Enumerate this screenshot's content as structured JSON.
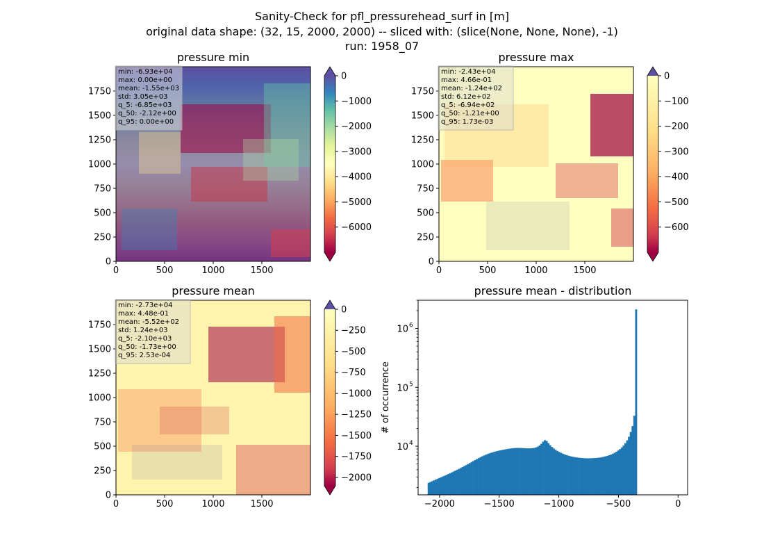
{
  "figure": {
    "title_lines": [
      "Sanity-Check for pfl_pressurehead_surf in [m]",
      "original data shape: (32, 15, 2000, 2000) -- sliced with: (slice(None, None, None), -1)",
      "run: 1958_07"
    ]
  },
  "chart_data": [
    {
      "type": "heatmap",
      "title": "pressure min",
      "xlim": [
        0,
        2000
      ],
      "ylim": [
        0,
        2000
      ],
      "x_ticks": [
        0,
        500,
        1000,
        1500
      ],
      "y_ticks": [
        0,
        250,
        500,
        750,
        1000,
        1250,
        1500,
        1750
      ],
      "colormap": "Spectral",
      "colorbar": {
        "min": -7000,
        "max": 0,
        "ticks": [
          0,
          -1000,
          -2000,
          -3000,
          -4000,
          -5000,
          -6000
        ],
        "extend": "both"
      },
      "stats_lines": [
        "min: -6.93e+04",
        "max: 0.00e+00",
        "mean: -1.55e+03",
        "std: 3.05e+03",
        "q_5: -6.85e+03",
        "q_50: -2.12e+00",
        "q_95: 0.00e+00"
      ]
    },
    {
      "type": "heatmap",
      "title": "pressure max",
      "xlim": [
        0,
        2000
      ],
      "ylim": [
        0,
        2000
      ],
      "x_ticks": [
        0,
        500,
        1000,
        1500
      ],
      "y_ticks": [
        0,
        250,
        500,
        750,
        1000,
        1250,
        1500,
        1750
      ],
      "colormap": "Spectral",
      "colorbar": {
        "min": -700,
        "max": 0,
        "ticks": [
          0,
          -100,
          -200,
          -300,
          -400,
          -500,
          -600
        ],
        "extend": "both"
      },
      "stats_lines": [
        "min: -2.43e+04",
        "max: 4.66e-01",
        "mean: -1.24e+02",
        "std: 6.12e+02",
        "q_5: -6.94e+02",
        "q_50: -1.21e+00",
        "q_95: 1.73e-03"
      ]
    },
    {
      "type": "heatmap",
      "title": "pressure mean",
      "xlim": [
        0,
        2000
      ],
      "ylim": [
        0,
        2000
      ],
      "x_ticks": [
        0,
        500,
        1000,
        1500
      ],
      "y_ticks": [
        0,
        250,
        500,
        750,
        1000,
        1250,
        1500,
        1750
      ],
      "colormap": "Spectral",
      "colorbar": {
        "min": -2100,
        "max": 0,
        "ticks": [
          0,
          -250,
          -500,
          -750,
          -1000,
          -1250,
          -1500,
          -1750,
          -2000
        ],
        "extend": "both"
      },
      "stats_lines": [
        "min: -2.73e+04",
        "max: 4.48e-01",
        "mean: -5.52e+02",
        "std: 1.24e+03",
        "q_5: -2.10e+03",
        "q_50: -1.73e+00",
        "q_95: 2.53e-04"
      ]
    },
    {
      "type": "bar",
      "title": "pressure mean - distribution",
      "ylabel": "# of occurrence",
      "yscale": "log",
      "xlim": [
        -2180,
        80
      ],
      "ylim": [
        1500,
        3000000
      ],
      "x_ticks": [
        -2000,
        -1500,
        -1000,
        -500,
        0
      ],
      "x_tick_labels": [
        "−2000",
        "−1500",
        "−1000",
        "−500",
        "0"
      ],
      "y_ticks": [
        10000,
        100000,
        1000000
      ],
      "y_tick_labels": [
        "10",
        "10",
        "10"
      ],
      "y_tick_exponents": [
        "4",
        "5",
        "6"
      ],
      "color": "#1f77b4",
      "bin_width": 15,
      "bin_start": -2100,
      "values": [
        2400,
        2480,
        2560,
        2640,
        2720,
        2810,
        2900,
        2990,
        3080,
        3170,
        3270,
        3380,
        3490,
        3610,
        3730,
        3860,
        4000,
        4140,
        4290,
        4450,
        4620,
        4800,
        4990,
        5190,
        5400,
        5620,
        5840,
        6070,
        6300,
        6530,
        6760,
        6980,
        7200,
        7400,
        7590,
        7770,
        7940,
        8100,
        8250,
        8390,
        8520,
        8640,
        8760,
        8880,
        8990,
        9090,
        9180,
        9260,
        9320,
        9360,
        9380,
        9370,
        9340,
        9300,
        9260,
        9230,
        9220,
        9230,
        9280,
        9380,
        9560,
        9850,
        10300,
        11000,
        12000,
        12700,
        12300,
        11300,
        10400,
        9700,
        9150,
        8700,
        8330,
        8010,
        7740,
        7500,
        7290,
        7110,
        6950,
        6810,
        6700,
        6600,
        6520,
        6450,
        6390,
        6340,
        6310,
        6280,
        6260,
        6250,
        6250,
        6260,
        6280,
        6310,
        6350,
        6400,
        6460,
        6540,
        6640,
        6760,
        6900,
        7060,
        7250,
        7480,
        7750,
        8080,
        8480,
        8960,
        9550,
        10300,
        11300,
        12600,
        14500,
        17500,
        22000,
        33000,
        2100000
      ]
    }
  ]
}
